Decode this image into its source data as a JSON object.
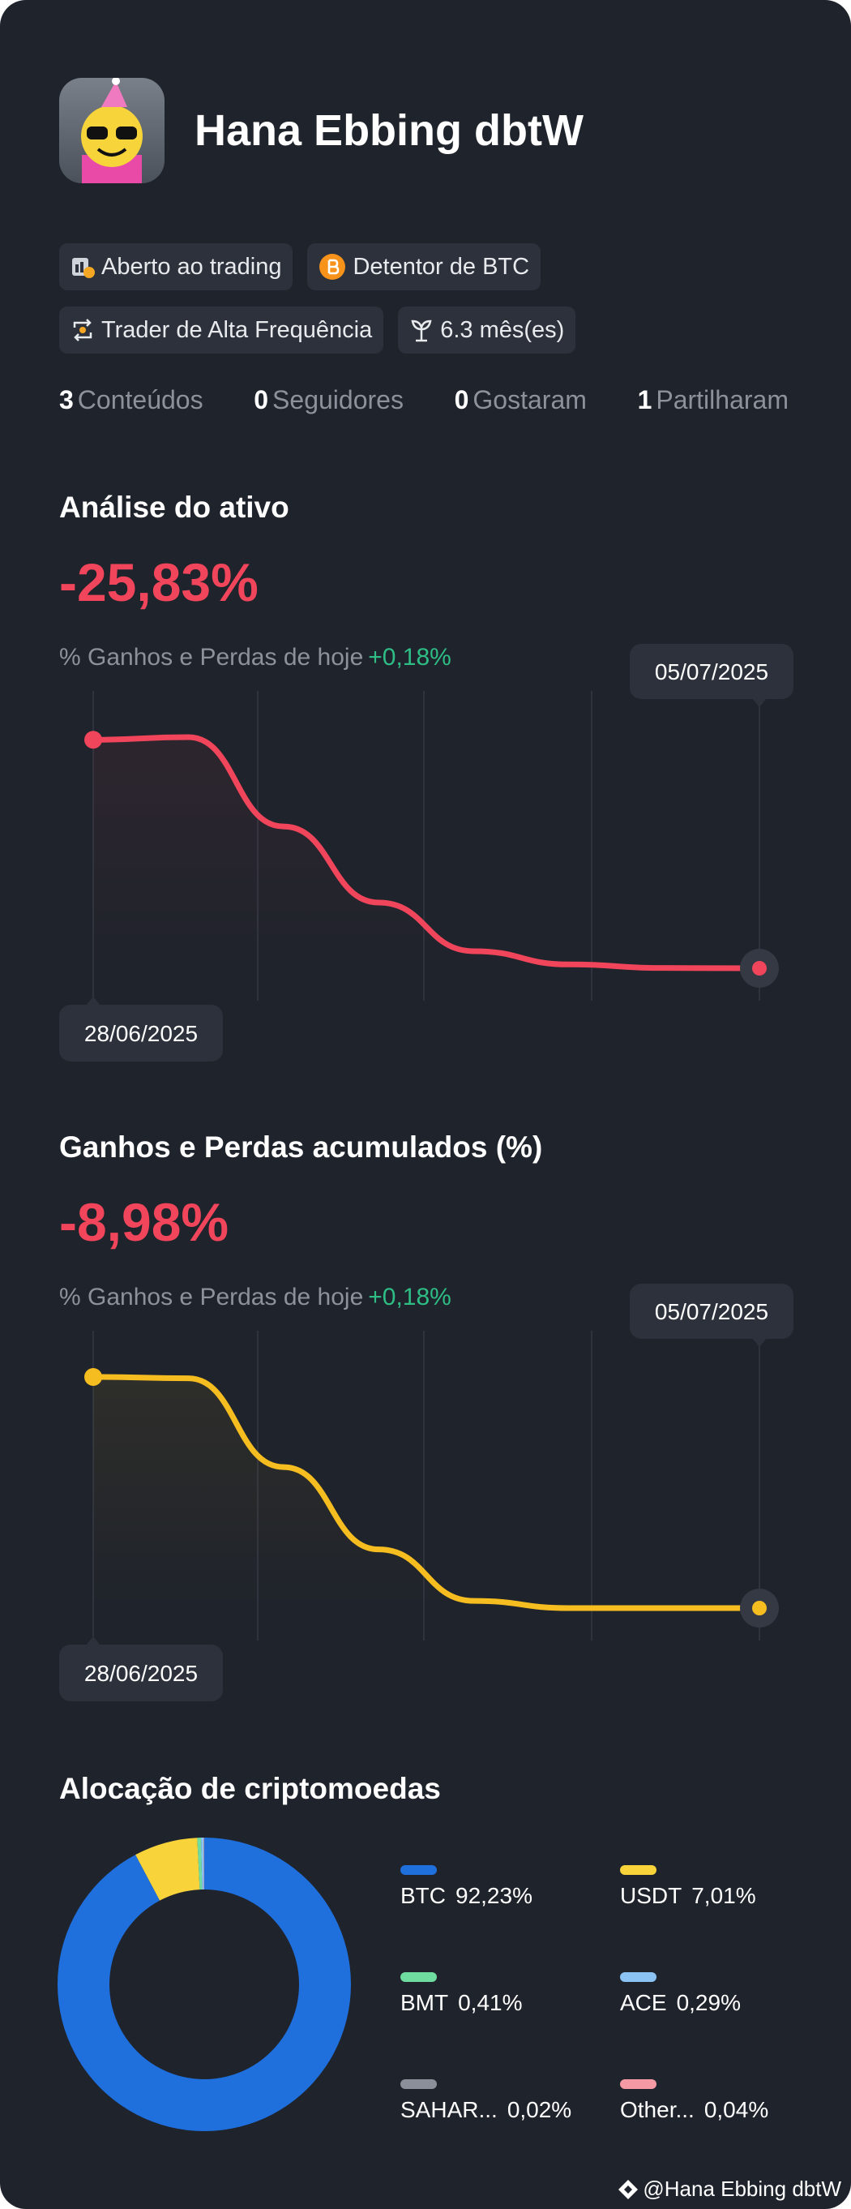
{
  "profile": {
    "name": "Hana Ebbing dbtW",
    "badges": [
      "Aberto ao trading",
      "Detentor de BTC",
      "Trader de Alta Frequência",
      "6.3 mês(es)"
    ],
    "stats": [
      {
        "count": "3",
        "label": "Conteúdos"
      },
      {
        "count": "0",
        "label": "Seguidores"
      },
      {
        "count": "0",
        "label": "Gostaram"
      },
      {
        "count": "1",
        "label": "Partilharam"
      }
    ]
  },
  "chart_data": [
    {
      "type": "line",
      "title": "Análise do ativo",
      "headline": "-25,83%",
      "subtitle": "% Ganhos e Perdas de hoje",
      "subtitle_value": "+0,18%",
      "categories": [
        "28/06/2025",
        null,
        null,
        null,
        null,
        null,
        null,
        "05/07/2025"
      ],
      "values": [
        0,
        0.3,
        -9.8,
        -18.4,
        -23.9,
        -25.4,
        -25.8,
        -25.83
      ],
      "color": "#f0455a"
    },
    {
      "type": "line",
      "title": "Ganhos e Perdas acumulados (%)",
      "headline": "-8,98%",
      "subtitle": "% Ganhos e Perdas de hoje",
      "subtitle_value": "+0,18%",
      "categories": [
        "28/06/2025",
        null,
        null,
        null,
        null,
        null,
        null,
        "05/07/2025"
      ],
      "values": [
        0,
        -0.05,
        -3.5,
        -6.7,
        -8.7,
        -8.98,
        -8.98,
        -8.98
      ],
      "color": "#f5bd1f"
    },
    {
      "type": "pie",
      "title": "Alocação de criptomoedas",
      "categories": [
        "BTC",
        "USDT",
        "BMT",
        "ACE",
        "SAHAR...",
        "Other..."
      ],
      "values": [
        92.23,
        7.01,
        0.41,
        0.29,
        0.02,
        0.04
      ],
      "value_labels": [
        "92,23%",
        "7,01%",
        "0,41%",
        "0,29%",
        "0,02%",
        "0,04%"
      ],
      "colors": [
        "#1f6fdc",
        "#f8d33a",
        "#6fdca0",
        "#8cc3f5",
        "#8a8f99",
        "#f59aa5"
      ]
    }
  ],
  "footer": "@Hana Ebbing dbtW"
}
